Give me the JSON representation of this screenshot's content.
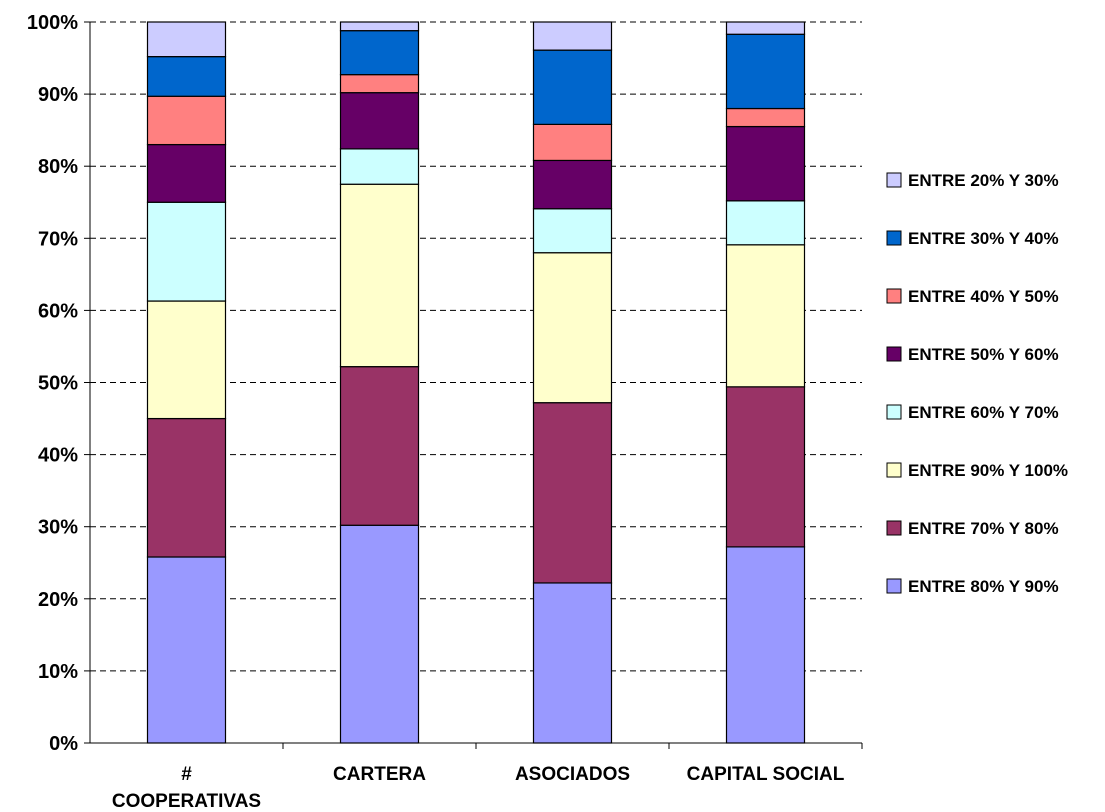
{
  "chart_data": {
    "type": "bar",
    "stacked": true,
    "normalized": true,
    "categories": [
      [
        "#",
        "COOPERATIVAS"
      ],
      [
        "CARTERA"
      ],
      [
        "ASOCIADOS"
      ],
      [
        "CAPITAL SOCIAL"
      ]
    ],
    "series": [
      {
        "name": "ENTRE 80% Y 90%",
        "color": "#9999ff",
        "values": [
          25.8,
          30.2,
          22.2,
          27.2
        ]
      },
      {
        "name": "ENTRE 70% Y 80%",
        "color": "#993366",
        "values": [
          19.2,
          22.0,
          25.0,
          22.2
        ]
      },
      {
        "name": "ENTRE 90% Y 100%",
        "color": "#ffffcc",
        "values": [
          16.3,
          25.3,
          20.8,
          19.7
        ]
      },
      {
        "name": "ENTRE 60% Y 70%",
        "color": "#ccffff",
        "values": [
          13.7,
          4.9,
          6.1,
          6.1
        ]
      },
      {
        "name": "ENTRE 50% Y 60%",
        "color": "#660066",
        "values": [
          8.0,
          7.8,
          6.7,
          10.3
        ]
      },
      {
        "name": "ENTRE 40% Y 50%",
        "color": "#ff8080",
        "values": [
          6.7,
          2.5,
          5.0,
          2.5
        ]
      },
      {
        "name": "ENTRE 30% Y 40%",
        "color": "#0066cc",
        "values": [
          5.5,
          6.1,
          10.3,
          10.3
        ]
      },
      {
        "name": "ENTRE 20% Y 30%",
        "color": "#ccccff",
        "values": [
          4.8,
          1.2,
          3.9,
          1.7
        ]
      }
    ],
    "legend_order": [
      7,
      6,
      5,
      4,
      3,
      2,
      1,
      0
    ],
    "yticks": [
      "0%",
      "10%",
      "20%",
      "30%",
      "40%",
      "50%",
      "60%",
      "70%",
      "80%",
      "90%",
      "100%"
    ],
    "ylim": [
      0,
      100
    ],
    "grid": "horizontal-dashed",
    "legend_position": "right"
  }
}
